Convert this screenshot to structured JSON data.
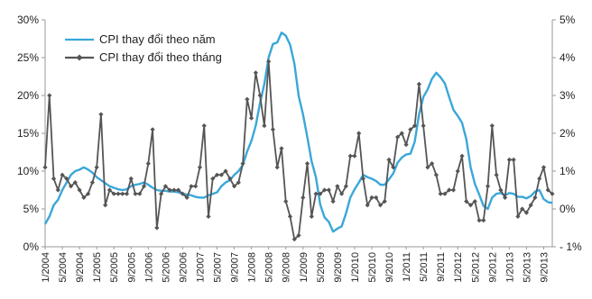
{
  "chart_data": {
    "type": "line",
    "x": [
      "1/2004",
      "2/2004",
      "3/2004",
      "4/2004",
      "5/2004",
      "6/2004",
      "7/2004",
      "8/2004",
      "9/2004",
      "10/2004",
      "11/2004",
      "12/2004",
      "1/2005",
      "2/2005",
      "3/2005",
      "4/2005",
      "5/2005",
      "6/2005",
      "7/2005",
      "8/2005",
      "9/2005",
      "10/2005",
      "11/2005",
      "12/2005",
      "1/2006",
      "2/2006",
      "3/2006",
      "4/2006",
      "5/2006",
      "6/2006",
      "7/2006",
      "8/2006",
      "9/2006",
      "10/2006",
      "11/2006",
      "12/2006",
      "1/2007",
      "2/2007",
      "3/2007",
      "4/2007",
      "5/2007",
      "6/2007",
      "7/2007",
      "8/2007",
      "9/2007",
      "10/2007",
      "11/2007",
      "12/2007",
      "1/2008",
      "2/2008",
      "3/2008",
      "4/2008",
      "5/2008",
      "6/2008",
      "7/2008",
      "8/2008",
      "9/2008",
      "10/2008",
      "11/2008",
      "12/2008",
      "1/2009",
      "2/2009",
      "3/2009",
      "4/2009",
      "5/2009",
      "6/2009",
      "7/2009",
      "8/2009",
      "9/2009",
      "10/2009",
      "11/2009",
      "12/2009",
      "1/2010",
      "2/2010",
      "3/2010",
      "4/2010",
      "5/2010",
      "6/2010",
      "7/2010",
      "8/2010",
      "9/2010",
      "10/2010",
      "11/2010",
      "12/2010",
      "1/2011",
      "2/2011",
      "3/2011",
      "4/2011",
      "5/2011",
      "6/2011",
      "7/2011",
      "8/2011",
      "9/2011",
      "10/2011",
      "11/2011",
      "12/2011",
      "1/2012",
      "2/2012",
      "3/2012",
      "4/2012",
      "5/2012",
      "6/2012",
      "7/2012",
      "8/2012",
      "9/2012",
      "10/2012",
      "11/2012",
      "12/2012",
      "1/2013",
      "2/2013",
      "3/2013",
      "4/2013",
      "5/2013",
      "6/2013",
      "7/2013",
      "8/2013",
      "9/2013",
      "10/2013",
      "11/2013"
    ],
    "x_tick_labels": [
      "1/2004",
      "5/2004",
      "9/2004",
      "1/2005",
      "5/2005",
      "9/2005",
      "1/2006",
      "5/2006",
      "9/2006",
      "1/2007",
      "5/2007",
      "9/2007",
      "1/2008",
      "5/2008",
      "9/2008",
      "1/2009",
      "5/2009",
      "9/2009",
      "1/2010",
      "5/2010",
      "9/2010",
      "1/2011",
      "5/2011",
      "9/2011",
      "1/2012",
      "5/2012",
      "9/2012",
      "1/2013",
      "5/2013",
      "9/2013"
    ],
    "y_left": {
      "min": 0,
      "max": 30,
      "ticks": [
        "0%",
        "5%",
        "10%",
        "15%",
        "20%",
        "25%",
        "30%"
      ]
    },
    "y_right": {
      "min": -1,
      "max": 5,
      "ticks": [
        "- 1%",
        "0%",
        "1%",
        "2%",
        "3%",
        "4%",
        "5%"
      ]
    },
    "grid": false,
    "legend_position": "top-left",
    "series": [
      {
        "name": "CPI thay đổi theo năm",
        "axis": "left",
        "color": "#3aa7d9",
        "values": [
          3.0,
          4.0,
          5.5,
          6.2,
          7.5,
          8.5,
          9.5,
          10.0,
          10.2,
          10.5,
          10.2,
          9.8,
          9.2,
          8.8,
          8.4,
          8.0,
          7.8,
          7.6,
          7.5,
          7.6,
          8.0,
          8.2,
          8.3,
          8.5,
          8.2,
          7.8,
          7.5,
          7.4,
          7.4,
          7.3,
          7.3,
          7.2,
          7.0,
          6.9,
          6.8,
          6.6,
          6.5,
          6.5,
          6.8,
          7.0,
          7.2,
          8.0,
          8.5,
          8.8,
          9.5,
          10.0,
          10.8,
          12.6,
          14.0,
          16.0,
          19.0,
          21.5,
          25.0,
          26.8,
          27.0,
          28.3,
          27.9,
          26.7,
          24.2,
          19.9,
          17.5,
          14.5,
          11.3,
          9.2,
          5.6,
          3.9,
          3.3,
          2.0,
          2.4,
          2.7,
          4.4,
          6.5,
          7.6,
          8.5,
          9.5,
          9.2,
          9.0,
          8.7,
          8.2,
          8.2,
          8.9,
          9.7,
          11.1,
          11.8,
          12.2,
          12.3,
          13.9,
          17.5,
          19.8,
          20.8,
          22.2,
          23.0,
          22.4,
          21.6,
          19.8,
          18.1,
          17.3,
          16.4,
          14.2,
          10.5,
          8.3,
          6.9,
          5.4,
          5.0,
          6.5,
          7.0,
          7.1,
          6.8,
          7.1,
          7.0,
          6.6,
          6.6,
          6.4,
          6.7,
          7.3,
          7.5,
          6.3,
          5.9,
          5.8
        ]
      },
      {
        "name": "CPI thay đổi theo tháng",
        "axis": "right",
        "color": "#555555",
        "values": [
          1.1,
          3.0,
          0.8,
          0.5,
          0.9,
          0.8,
          0.6,
          0.7,
          0.5,
          0.3,
          0.4,
          0.7,
          1.1,
          2.5,
          0.1,
          0.5,
          0.4,
          0.4,
          0.4,
          0.4,
          0.8,
          0.4,
          0.4,
          0.6,
          1.2,
          2.1,
          -0.5,
          0.4,
          0.6,
          0.5,
          0.5,
          0.5,
          0.4,
          0.3,
          0.6,
          0.6,
          1.1,
          2.2,
          -0.2,
          0.8,
          0.9,
          0.9,
          1.0,
          0.8,
          0.6,
          0.7,
          1.2,
          2.9,
          2.4,
          3.6,
          3.0,
          2.2,
          3.9,
          2.1,
          1.1,
          1.6,
          0.2,
          -0.2,
          -0.8,
          -0.7,
          0.3,
          1.2,
          -0.2,
          0.4,
          0.4,
          0.5,
          0.5,
          0.2,
          0.6,
          0.4,
          0.6,
          1.4,
          1.4,
          2.0,
          0.8,
          0.1,
          0.3,
          0.3,
          0.1,
          0.2,
          1.3,
          1.1,
          1.9,
          2.0,
          1.7,
          2.1,
          2.2,
          3.3,
          2.2,
          1.1,
          1.2,
          0.9,
          0.4,
          0.4,
          0.5,
          0.5,
          1.0,
          1.4,
          0.2,
          0.1,
          0.2,
          -0.3,
          -0.3,
          0.6,
          2.2,
          0.9,
          0.5,
          0.3,
          1.3,
          1.3,
          -0.2,
          0.0,
          -0.1,
          0.1,
          0.3,
          0.8,
          1.1,
          0.5,
          0.4
        ]
      }
    ]
  }
}
